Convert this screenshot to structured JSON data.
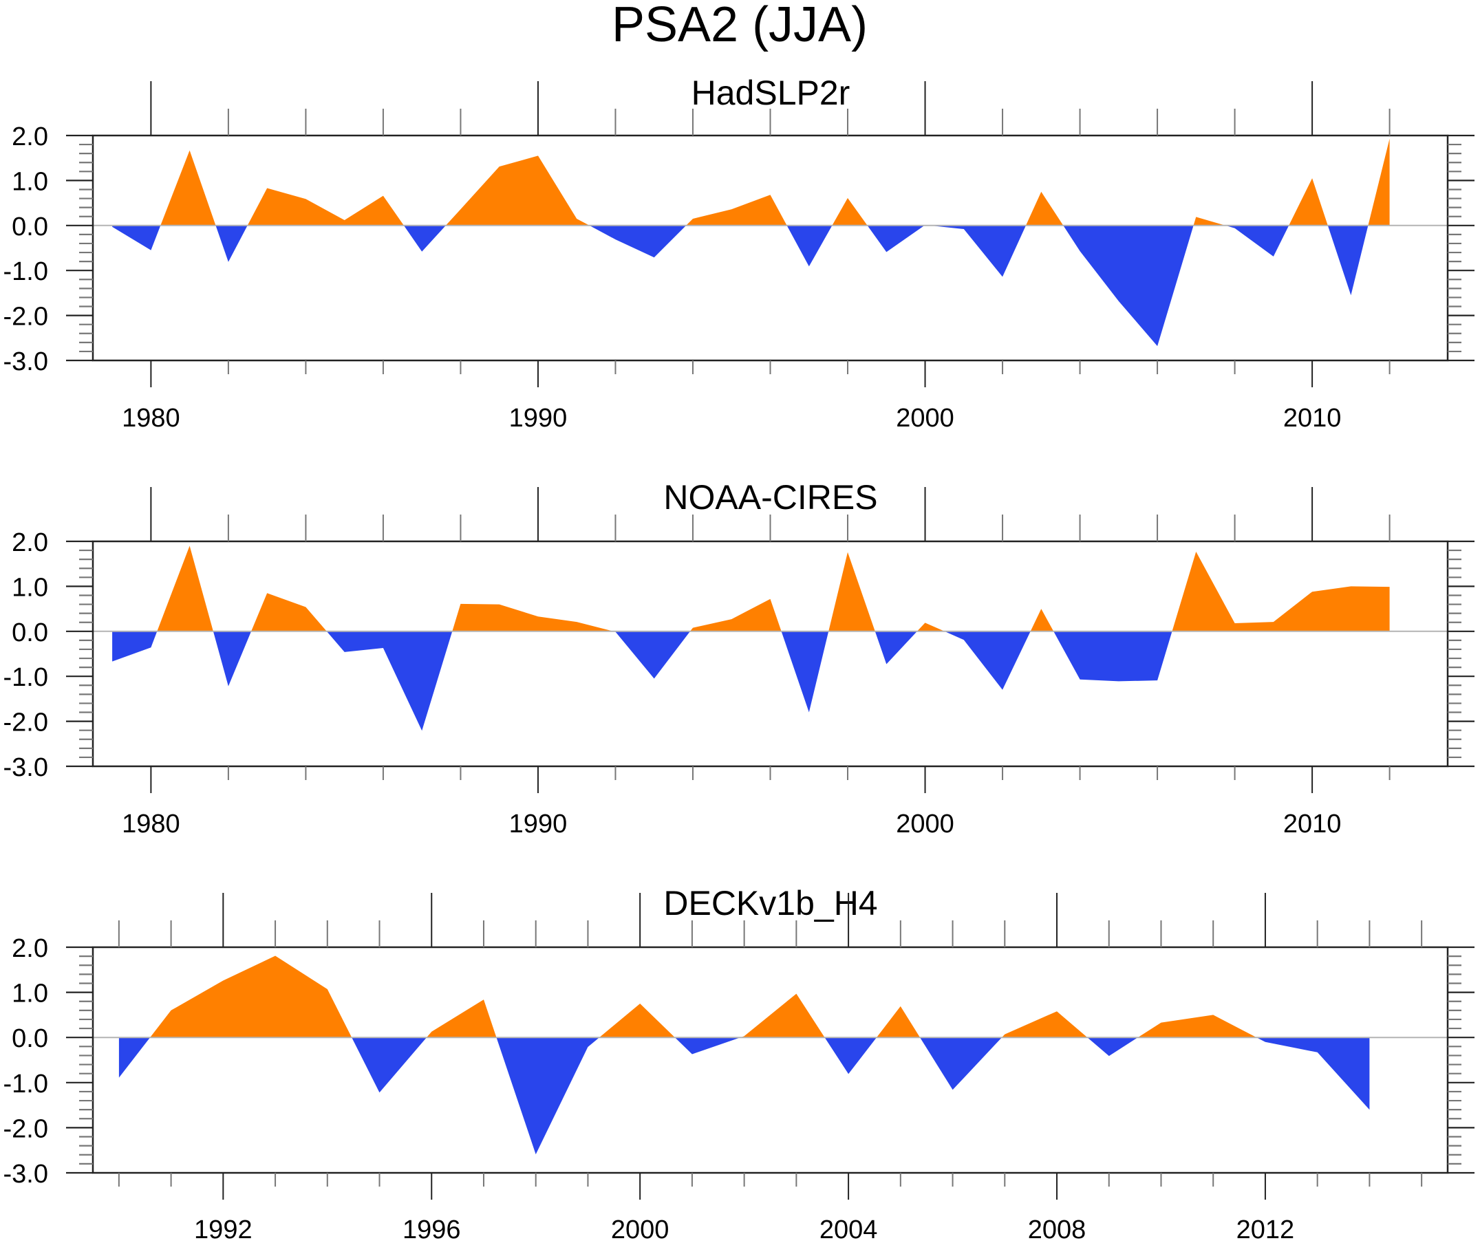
{
  "title": "PSA2 (JJA)",
  "colors": {
    "positive": "#FF8000",
    "negative": "#2945EC",
    "zero_line": "#b4b4b4",
    "axis": "#000000"
  },
  "chart_data": [
    {
      "type": "area",
      "title": "HadSLP2r",
      "xlabel": "",
      "ylabel": "",
      "xlim": [
        1978.5,
        2013.5
      ],
      "ylim": [
        -3.0,
        2.0
      ],
      "x_major_ticks": [
        1980,
        1990,
        2000,
        2010
      ],
      "x_tick_labels": [
        "1980",
        "1990",
        "2000",
        "2010"
      ],
      "x_minor_step": 2,
      "y_ticks": [
        2.0,
        1.0,
        0.0,
        -1.0,
        -2.0,
        -3.0
      ],
      "y_tick_labels": [
        "2.0",
        "1.0",
        "0.0",
        "-1.0",
        "-2.0",
        "-3.0"
      ],
      "y_minor_step": 0.2,
      "grid": false,
      "reference_line": 0.0,
      "fill_above": "positive",
      "fill_below": "negative",
      "x": [
        1979,
        1980,
        1981,
        1982,
        1983,
        1984,
        1985,
        1986,
        1987,
        1988,
        1989,
        1990,
        1991,
        1992,
        1993,
        1994,
        1995,
        1996,
        1997,
        1998,
        1999,
        2000,
        2001,
        2002,
        2003,
        2004,
        2005,
        2006,
        2007,
        2008,
        2009,
        2010,
        2011,
        2012
      ],
      "values": [
        -0.03,
        -0.55,
        1.67,
        -0.81,
        0.83,
        0.59,
        0.12,
        0.66,
        -0.58,
        0.36,
        1.31,
        1.55,
        0.15,
        -0.31,
        -0.71,
        0.15,
        0.36,
        0.68,
        -0.91,
        0.61,
        -0.59,
        0.01,
        -0.08,
        -1.14,
        0.75,
        -0.57,
        -1.68,
        -2.68,
        0.19,
        -0.06,
        -0.69,
        1.05,
        -1.55,
        1.93
      ]
    },
    {
      "type": "area",
      "title": "NOAA-CIRES",
      "xlabel": "",
      "ylabel": "",
      "xlim": [
        1978.5,
        2013.5
      ],
      "ylim": [
        -3.0,
        2.0
      ],
      "x_major_ticks": [
        1980,
        1990,
        2000,
        2010
      ],
      "x_tick_labels": [
        "1980",
        "1990",
        "2000",
        "2010"
      ],
      "x_minor_step": 2,
      "y_ticks": [
        2.0,
        1.0,
        0.0,
        -1.0,
        -2.0,
        -3.0
      ],
      "y_tick_labels": [
        "2.0",
        "1.0",
        "0.0",
        "-1.0",
        "-2.0",
        "-3.0"
      ],
      "y_minor_step": 0.2,
      "grid": false,
      "reference_line": 0.0,
      "fill_above": "positive",
      "fill_below": "negative",
      "x": [
        1979,
        1980,
        1981,
        1982,
        1983,
        1984,
        1985,
        1986,
        1987,
        1988,
        1989,
        1990,
        1991,
        1992,
        1993,
        1994,
        1995,
        1996,
        1997,
        1998,
        1999,
        2000,
        2001,
        2002,
        2003,
        2004,
        2005,
        2006,
        2007,
        2008,
        2009,
        2010,
        2011,
        2012
      ],
      "values": [
        -0.67,
        -0.36,
        1.9,
        -1.22,
        0.85,
        0.54,
        -0.46,
        -0.37,
        -2.21,
        0.61,
        0.6,
        0.33,
        0.21,
        -0.01,
        -1.05,
        0.08,
        0.27,
        0.72,
        -1.8,
        1.76,
        -0.73,
        0.19,
        -0.19,
        -1.3,
        0.5,
        -1.07,
        -1.11,
        -1.09,
        1.77,
        0.18,
        0.21,
        0.88,
        1.0,
        0.99
      ]
    },
    {
      "type": "area",
      "title": "DECKv1b_H4",
      "xlabel": "",
      "ylabel": "",
      "xlim": [
        1989.5,
        2015.5
      ],
      "ylim": [
        -3.0,
        2.0
      ],
      "x_major_ticks": [
        1992,
        1996,
        2000,
        2004,
        2008,
        2012
      ],
      "x_tick_labels": [
        "1992",
        "1996",
        "2000",
        "2004",
        "2008",
        "2012"
      ],
      "x_minor_step": 1,
      "y_ticks": [
        2.0,
        1.0,
        0.0,
        -1.0,
        -2.0,
        -3.0
      ],
      "y_tick_labels": [
        "2.0",
        "1.0",
        "0.0",
        "-1.0",
        "-2.0",
        "-3.0"
      ],
      "y_minor_step": 0.2,
      "grid": false,
      "reference_line": 0.0,
      "fill_above": "positive",
      "fill_below": "negative",
      "x": [
        1990,
        1991,
        1992,
        1993,
        1994,
        1995,
        1996,
        1997,
        1998,
        1999,
        2000,
        2001,
        2002,
        2003,
        2004,
        2005,
        2006,
        2007,
        2008,
        2009,
        2010,
        2011,
        2012,
        2013,
        2014
      ],
      "values": [
        -0.89,
        0.6,
        1.26,
        1.81,
        1.07,
        -1.22,
        0.13,
        0.84,
        -2.59,
        -0.21,
        0.75,
        -0.37,
        0.03,
        0.97,
        -0.81,
        0.69,
        -1.16,
        0.07,
        0.58,
        -0.41,
        0.33,
        0.5,
        -0.1,
        -0.33,
        -1.6
      ]
    }
  ]
}
